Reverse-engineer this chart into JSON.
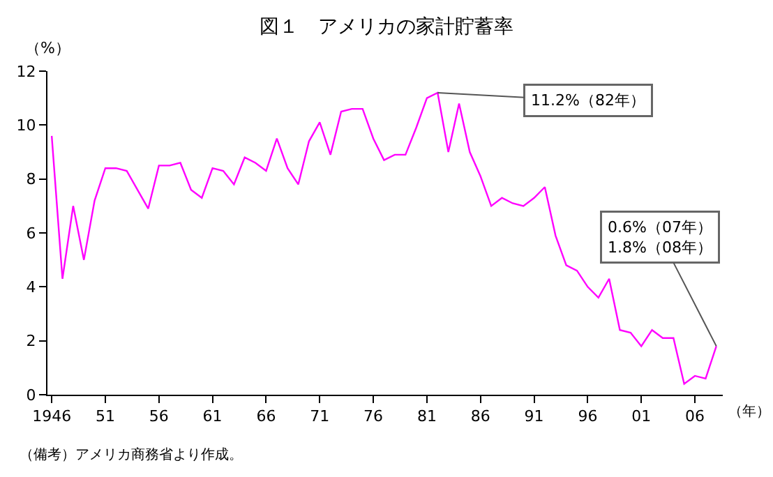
{
  "chart_data": {
    "type": "line",
    "title": "図１　アメリカの家計貯蓄率",
    "xlabel": "（年）",
    "ylabel": "（%）",
    "x": [
      1946,
      1947,
      1948,
      1949,
      1950,
      1951,
      1952,
      1953,
      1954,
      1955,
      1956,
      1957,
      1958,
      1959,
      1960,
      1961,
      1962,
      1963,
      1964,
      1965,
      1966,
      1967,
      1968,
      1969,
      1970,
      1971,
      1972,
      1973,
      1974,
      1975,
      1976,
      1977,
      1978,
      1979,
      1980,
      1981,
      1982,
      1983,
      1984,
      1985,
      1986,
      1987,
      1988,
      1989,
      1990,
      1991,
      1992,
      1993,
      1994,
      1995,
      1996,
      1997,
      1998,
      1999,
      2000,
      2001,
      2002,
      2003,
      2004,
      2005,
      2006,
      2007,
      2008
    ],
    "series": [
      {
        "color": "#ff00ff",
        "values": [
          9.6,
          4.3,
          7.0,
          5.0,
          7.2,
          8.4,
          8.4,
          8.3,
          7.6,
          6.9,
          8.5,
          8.5,
          8.6,
          7.6,
          7.3,
          8.4,
          8.3,
          7.8,
          8.8,
          8.6,
          8.3,
          9.5,
          8.4,
          7.8,
          9.4,
          10.1,
          8.9,
          10.5,
          10.6,
          10.6,
          9.5,
          8.7,
          8.9,
          8.9,
          9.9,
          11.0,
          11.2,
          9.0,
          10.8,
          9.0,
          8.1,
          7.0,
          7.3,
          7.1,
          7.0,
          7.3,
          7.7,
          5.9,
          4.8,
          4.6,
          4.0,
          3.6,
          4.3,
          2.4,
          2.3,
          1.8,
          2.4,
          2.1,
          2.1,
          0.4,
          0.7,
          0.6,
          1.8
        ]
      }
    ],
    "xlim": [
      1945.6,
      2008.6
    ],
    "xticks": [
      {
        "value": 1946,
        "label": "1946"
      },
      {
        "value": 1951,
        "label": "51"
      },
      {
        "value": 1956,
        "label": "56"
      },
      {
        "value": 1961,
        "label": "61"
      },
      {
        "value": 1966,
        "label": "66"
      },
      {
        "value": 1971,
        "label": "71"
      },
      {
        "value": 1976,
        "label": "76"
      },
      {
        "value": 1981,
        "label": "81"
      },
      {
        "value": 1986,
        "label": "86"
      },
      {
        "value": 1991,
        "label": "91"
      },
      {
        "value": 1996,
        "label": "96"
      },
      {
        "value": 2001,
        "label": "01"
      },
      {
        "value": 2006,
        "label": "06"
      }
    ],
    "ylim": [
      0,
      12
    ],
    "yticks": [
      0,
      2,
      4,
      6,
      8,
      10,
      12
    ],
    "legend": false,
    "marker": "none",
    "line_style": "solid",
    "annotations": [
      {
        "text": "11.2%（82年）",
        "x": 1982,
        "y": 11.2
      },
      {
        "text": "0.6%（07年）\n1.8%（08年）",
        "x": 2008,
        "y": 1.8
      },
      "（備考）アメリカ商務省より作成。"
    ]
  }
}
